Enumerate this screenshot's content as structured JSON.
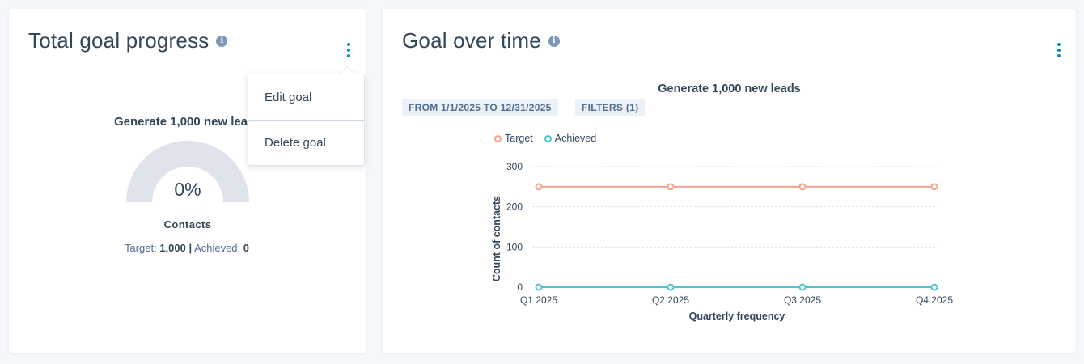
{
  "left_card": {
    "title": "Total goal progress",
    "info_icon": "info-icon",
    "menu_icon": "kebab-vertical-icon",
    "dropdown": {
      "items": [
        {
          "label": "Edit goal"
        },
        {
          "label": "Delete goal"
        }
      ]
    },
    "goal_name": "Generate 1,000 new leads",
    "gauge": {
      "percent_label": "0%",
      "percent": 0,
      "metric_label": "Contacts",
      "target_label": "Target:",
      "target_value": "1,000",
      "separator": "|",
      "achieved_label": "Achieved:",
      "achieved_value": "0"
    }
  },
  "right_card": {
    "title": "Goal over time",
    "info_icon": "info-icon",
    "menu_icon": "kebab-vertical-icon",
    "chips": [
      {
        "label": "FROM 1/1/2025 TO 12/31/2025"
      },
      {
        "label": "FILTERS (1)"
      }
    ],
    "legend": [
      {
        "label": "Target",
        "color": "#f2a38f"
      },
      {
        "label": "Achieved",
        "color": "#4fc5d2"
      }
    ]
  },
  "colors": {
    "accent": "#0091ae",
    "text": "#33475b",
    "target_line": "#f2a38f",
    "achieved_line": "#4fc5d2",
    "gauge_track": "#dfe3eb"
  },
  "chart_data": {
    "type": "line",
    "title": "Generate 1,000 new leads",
    "xlabel": "Quarterly frequency",
    "ylabel": "Count of contacts",
    "categories": [
      "Q1 2025",
      "Q2 2025",
      "Q3 2025",
      "Q4 2025"
    ],
    "yticks": [
      "0",
      "100",
      "200",
      "300"
    ],
    "ylim": [
      0,
      300
    ],
    "grid": true,
    "legend_position": "top-left",
    "series": [
      {
        "name": "Target",
        "values": [
          250,
          250,
          250,
          250
        ],
        "color": "#f2a38f"
      },
      {
        "name": "Achieved",
        "values": [
          0,
          0,
          0,
          0
        ],
        "color": "#4fc5d2"
      }
    ]
  }
}
